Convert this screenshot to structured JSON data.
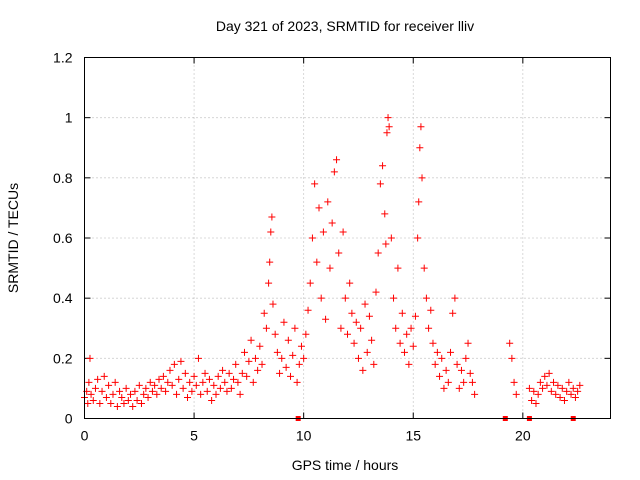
{
  "chart_data": {
    "type": "scatter",
    "title": "Day 321 of 2023, SRMTID for receiver lliv",
    "xlabel": "GPS time / hours",
    "ylabel": "SRMTID / TECUs",
    "xlim": [
      0,
      24
    ],
    "ylim": [
      0,
      1.2
    ],
    "xticks": [
      0,
      5,
      10,
      15,
      20
    ],
    "yticks": [
      0,
      0.2,
      0.4,
      0.6,
      0.8,
      1,
      1.2
    ],
    "xtick_labels": [
      "0",
      "5",
      "10",
      "15",
      "20"
    ],
    "ytick_labels": [
      "0",
      "0.2",
      "0.4",
      "0.6",
      "0.8",
      "1",
      "1.2"
    ],
    "grid": true,
    "marker": "+",
    "color": "#ff0000",
    "series": [
      {
        "name": "SRMTID",
        "points": [
          [
            0.0,
            0.07
          ],
          [
            0.1,
            0.09
          ],
          [
            0.15,
            0.05
          ],
          [
            0.2,
            0.12
          ],
          [
            0.25,
            0.2
          ],
          [
            0.3,
            0.08
          ],
          [
            0.4,
            0.06
          ],
          [
            0.5,
            0.1
          ],
          [
            0.6,
            0.13
          ],
          [
            0.7,
            0.05
          ],
          [
            0.8,
            0.09
          ],
          [
            0.9,
            0.14
          ],
          [
            1.0,
            0.07
          ],
          [
            1.1,
            0.11
          ],
          [
            1.2,
            0.05
          ],
          [
            1.3,
            0.08
          ],
          [
            1.4,
            0.12
          ],
          [
            1.5,
            0.04
          ],
          [
            1.6,
            0.09
          ],
          [
            1.7,
            0.07
          ],
          [
            1.8,
            0.05
          ],
          [
            1.9,
            0.1
          ],
          [
            2.0,
            0.06
          ],
          [
            2.1,
            0.08
          ],
          [
            2.2,
            0.04
          ],
          [
            2.3,
            0.09
          ],
          [
            2.4,
            0.06
          ],
          [
            2.5,
            0.11
          ],
          [
            2.6,
            0.05
          ],
          [
            2.7,
            0.08
          ],
          [
            2.8,
            0.1
          ],
          [
            2.9,
            0.07
          ],
          [
            3.0,
            0.12
          ],
          [
            3.1,
            0.09
          ],
          [
            3.2,
            0.11
          ],
          [
            3.3,
            0.08
          ],
          [
            3.4,
            0.13
          ],
          [
            3.5,
            0.1
          ],
          [
            3.6,
            0.14
          ],
          [
            3.7,
            0.09
          ],
          [
            3.8,
            0.12
          ],
          [
            3.9,
            0.16
          ],
          [
            4.0,
            0.11
          ],
          [
            4.1,
            0.18
          ],
          [
            4.2,
            0.08
          ],
          [
            4.3,
            0.13
          ],
          [
            4.4,
            0.19
          ],
          [
            4.5,
            0.1
          ],
          [
            4.6,
            0.15
          ],
          [
            4.7,
            0.07
          ],
          [
            4.8,
            0.12
          ],
          [
            4.9,
            0.09
          ],
          [
            5.0,
            0.14
          ],
          [
            5.1,
            0.11
          ],
          [
            5.2,
            0.2
          ],
          [
            5.3,
            0.08
          ],
          [
            5.4,
            0.12
          ],
          [
            5.5,
            0.15
          ],
          [
            5.6,
            0.09
          ],
          [
            5.7,
            0.13
          ],
          [
            5.8,
            0.06
          ],
          [
            5.9,
            0.11
          ],
          [
            6.0,
            0.08
          ],
          [
            6.1,
            0.14
          ],
          [
            6.2,
            0.1
          ],
          [
            6.3,
            0.16
          ],
          [
            6.4,
            0.12
          ],
          [
            6.5,
            0.09
          ],
          [
            6.6,
            0.15
          ],
          [
            6.7,
            0.1
          ],
          [
            6.8,
            0.13
          ],
          [
            6.9,
            0.18
          ],
          [
            7.0,
            0.12
          ],
          [
            7.1,
            0.08
          ],
          [
            7.2,
            0.15
          ],
          [
            7.3,
            0.22
          ],
          [
            7.4,
            0.14
          ],
          [
            7.5,
            0.19
          ],
          [
            7.6,
            0.26
          ],
          [
            7.7,
            0.12
          ],
          [
            7.8,
            0.2
          ],
          [
            7.9,
            0.16
          ],
          [
            8.0,
            0.24
          ],
          [
            8.1,
            0.18
          ],
          [
            8.2,
            0.35
          ],
          [
            8.3,
            0.3
          ],
          [
            8.4,
            0.45
          ],
          [
            8.45,
            0.52
          ],
          [
            8.5,
            0.62
          ],
          [
            8.55,
            0.67
          ],
          [
            8.6,
            0.38
          ],
          [
            8.7,
            0.28
          ],
          [
            8.8,
            0.22
          ],
          [
            8.9,
            0.15
          ],
          [
            9.0,
            0.2
          ],
          [
            9.1,
            0.32
          ],
          [
            9.2,
            0.17
          ],
          [
            9.3,
            0.26
          ],
          [
            9.4,
            0.14
          ],
          [
            9.5,
            0.21
          ],
          [
            9.6,
            0.3
          ],
          [
            9.7,
            0.12
          ],
          [
            9.8,
            0.18
          ],
          [
            9.9,
            0.24
          ],
          [
            10.0,
            0.2
          ],
          [
            10.1,
            0.28
          ],
          [
            10.2,
            0.36
          ],
          [
            10.3,
            0.45
          ],
          [
            10.4,
            0.6
          ],
          [
            10.5,
            0.78
          ],
          [
            10.6,
            0.52
          ],
          [
            10.7,
            0.7
          ],
          [
            10.8,
            0.4
          ],
          [
            10.9,
            0.62
          ],
          [
            11.0,
            0.33
          ],
          [
            11.1,
            0.72
          ],
          [
            11.2,
            0.5
          ],
          [
            11.3,
            0.65
          ],
          [
            11.4,
            0.82
          ],
          [
            11.5,
            0.86
          ],
          [
            11.6,
            0.55
          ],
          [
            11.7,
            0.3
          ],
          [
            11.8,
            0.62
          ],
          [
            11.9,
            0.4
          ],
          [
            12.0,
            0.28
          ],
          [
            12.1,
            0.45
          ],
          [
            12.2,
            0.35
          ],
          [
            12.3,
            0.25
          ],
          [
            12.4,
            0.32
          ],
          [
            12.5,
            0.2
          ],
          [
            12.6,
            0.3
          ],
          [
            12.7,
            0.16
          ],
          [
            12.8,
            0.38
          ],
          [
            12.9,
            0.22
          ],
          [
            13.0,
            0.34
          ],
          [
            13.1,
            0.26
          ],
          [
            13.2,
            0.18
          ],
          [
            13.3,
            0.42
          ],
          [
            13.4,
            0.55
          ],
          [
            13.5,
            0.78
          ],
          [
            13.6,
            0.84
          ],
          [
            13.7,
            0.68
          ],
          [
            13.75,
            0.58
          ],
          [
            13.8,
            0.95
          ],
          [
            13.85,
            1.0
          ],
          [
            13.9,
            0.97
          ],
          [
            14.0,
            0.6
          ],
          [
            14.1,
            0.4
          ],
          [
            14.2,
            0.3
          ],
          [
            14.3,
            0.5
          ],
          [
            14.4,
            0.25
          ],
          [
            14.5,
            0.35
          ],
          [
            14.6,
            0.22
          ],
          [
            14.7,
            0.28
          ],
          [
            14.8,
            0.18
          ],
          [
            14.9,
            0.3
          ],
          [
            15.0,
            0.24
          ],
          [
            15.1,
            0.34
          ],
          [
            15.2,
            0.6
          ],
          [
            15.25,
            0.72
          ],
          [
            15.3,
            0.9
          ],
          [
            15.35,
            0.97
          ],
          [
            15.4,
            0.8
          ],
          [
            15.5,
            0.5
          ],
          [
            15.6,
            0.4
          ],
          [
            15.7,
            0.3
          ],
          [
            15.8,
            0.36
          ],
          [
            15.9,
            0.25
          ],
          [
            16.0,
            0.18
          ],
          [
            16.1,
            0.22
          ],
          [
            16.2,
            0.14
          ],
          [
            16.3,
            0.2
          ],
          [
            16.4,
            0.1
          ],
          [
            16.5,
            0.16
          ],
          [
            16.6,
            0.12
          ],
          [
            16.7,
            0.22
          ],
          [
            16.8,
            0.35
          ],
          [
            16.9,
            0.4
          ],
          [
            17.0,
            0.18
          ],
          [
            17.1,
            0.1
          ],
          [
            17.2,
            0.16
          ],
          [
            17.3,
            0.12
          ],
          [
            17.4,
            0.2
          ],
          [
            17.5,
            0.25
          ],
          [
            17.6,
            0.15
          ],
          [
            17.7,
            0.12
          ],
          [
            17.8,
            0.08
          ],
          [
            19.4,
            0.25
          ],
          [
            19.5,
            0.2
          ],
          [
            19.6,
            0.12
          ],
          [
            19.7,
            0.08
          ],
          [
            20.3,
            0.1
          ],
          [
            20.4,
            0.06
          ],
          [
            20.5,
            0.09
          ],
          [
            20.6,
            0.05
          ],
          [
            20.7,
            0.08
          ],
          [
            20.8,
            0.12
          ],
          [
            20.9,
            0.1
          ],
          [
            21.0,
            0.14
          ],
          [
            21.1,
            0.11
          ],
          [
            21.2,
            0.15
          ],
          [
            21.3,
            0.09
          ],
          [
            21.4,
            0.12
          ],
          [
            21.5,
            0.08
          ],
          [
            21.6,
            0.11
          ],
          [
            21.7,
            0.07
          ],
          [
            21.8,
            0.1
          ],
          [
            21.9,
            0.06
          ],
          [
            22.0,
            0.09
          ],
          [
            22.1,
            0.12
          ],
          [
            22.2,
            0.08
          ],
          [
            22.3,
            0.1
          ],
          [
            22.4,
            0.07
          ],
          [
            22.5,
            0.09
          ],
          [
            22.6,
            0.11
          ]
        ]
      }
    ],
    "gap_markers_x": [
      9.75,
      19.2,
      20.3,
      22.3
    ]
  }
}
